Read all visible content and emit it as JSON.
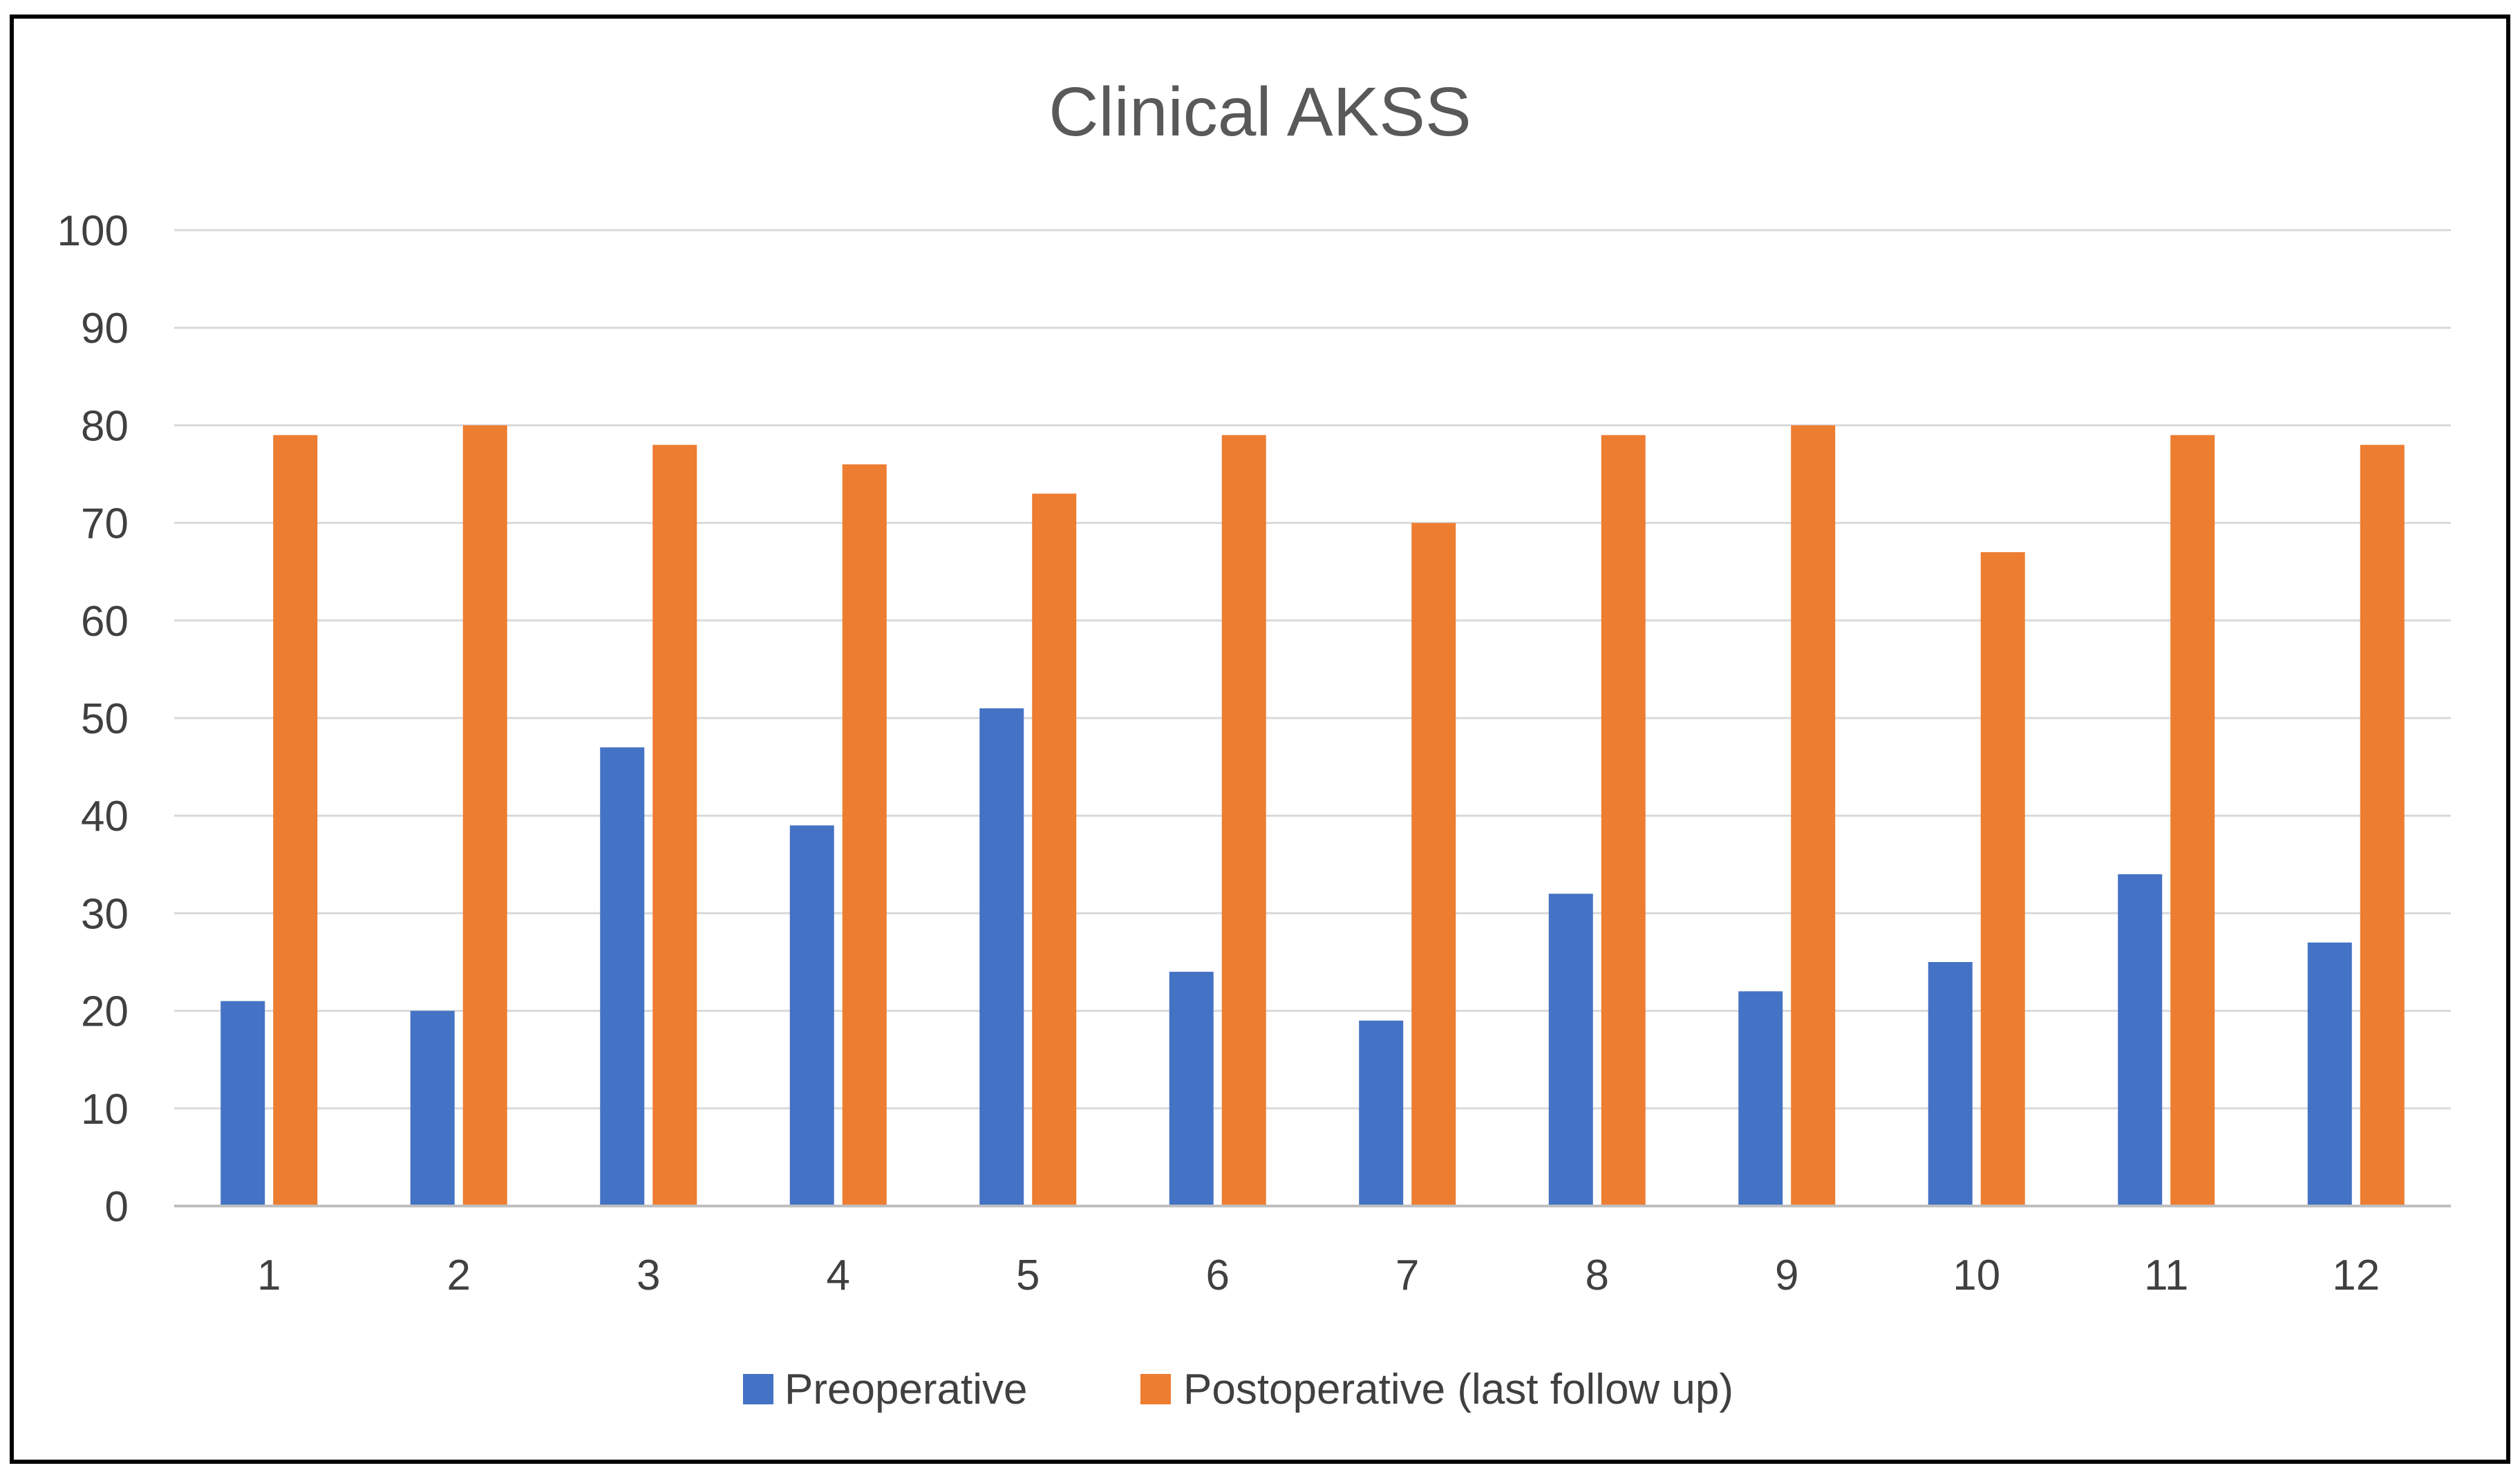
{
  "chart_data": {
    "type": "bar",
    "title": "Clinical AKSS",
    "xlabel": "",
    "ylabel": "",
    "ylim": [
      0,
      100
    ],
    "yticks": [
      0,
      10,
      20,
      30,
      40,
      50,
      60,
      70,
      80,
      90,
      100
    ],
    "grid": true,
    "legend_position": "bottom",
    "categories": [
      "1",
      "2",
      "3",
      "4",
      "5",
      "6",
      "7",
      "8",
      "9",
      "10",
      "11",
      "12"
    ],
    "series": [
      {
        "name": "Preoperative",
        "color": "#4472C4",
        "values": [
          21,
          20,
          47,
          39,
          51,
          24,
          19,
          32,
          22,
          25,
          34,
          27
        ]
      },
      {
        "name": "Postoperative (last follow up)",
        "color": "#ED7D31",
        "values": [
          79,
          80,
          78,
          76,
          73,
          79,
          70,
          79,
          80,
          67,
          79,
          78
        ]
      }
    ]
  }
}
